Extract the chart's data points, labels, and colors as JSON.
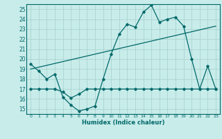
{
  "xlabel": "Humidex (Indice chaleur)",
  "bg_color": "#c8ecea",
  "grid_color": "#aad4d0",
  "line_color": "#006868",
  "xlim": [
    -0.5,
    23.5
  ],
  "ylim": [
    14.5,
    25.5
  ],
  "xticks": [
    0,
    1,
    2,
    3,
    4,
    5,
    6,
    7,
    8,
    9,
    10,
    11,
    12,
    13,
    14,
    15,
    16,
    17,
    18,
    19,
    20,
    21,
    22,
    23
  ],
  "yticks": [
    15,
    16,
    17,
    18,
    19,
    20,
    21,
    22,
    23,
    24,
    25
  ],
  "series1_x": [
    0,
    1,
    2,
    3,
    4,
    5,
    6,
    7,
    8,
    9,
    10,
    11,
    12,
    13,
    14,
    15,
    16,
    17,
    18,
    19,
    20,
    21,
    22,
    23
  ],
  "series1_y": [
    19.5,
    18.8,
    18.0,
    18.5,
    16.2,
    15.4,
    14.8,
    15.0,
    15.3,
    18.0,
    20.5,
    22.5,
    23.5,
    23.2,
    24.7,
    25.4,
    23.7,
    24.0,
    24.2,
    23.3,
    20.0,
    17.0,
    19.3,
    17.0
  ],
  "series2_x": [
    0,
    1,
    2,
    3,
    4,
    5,
    6,
    7,
    8,
    9,
    10,
    11,
    12,
    13,
    14,
    15,
    16,
    17,
    18,
    19,
    20,
    21,
    22,
    23
  ],
  "series2_y": [
    17.0,
    17.0,
    17.0,
    17.0,
    16.7,
    16.1,
    16.5,
    17.0,
    17.0,
    17.0,
    17.0,
    17.0,
    17.0,
    17.0,
    17.0,
    17.0,
    17.0,
    17.0,
    17.0,
    17.0,
    17.0,
    17.0,
    17.0,
    17.0
  ],
  "series3_x": [
    0,
    23
  ],
  "series3_y": [
    19.0,
    23.3
  ]
}
